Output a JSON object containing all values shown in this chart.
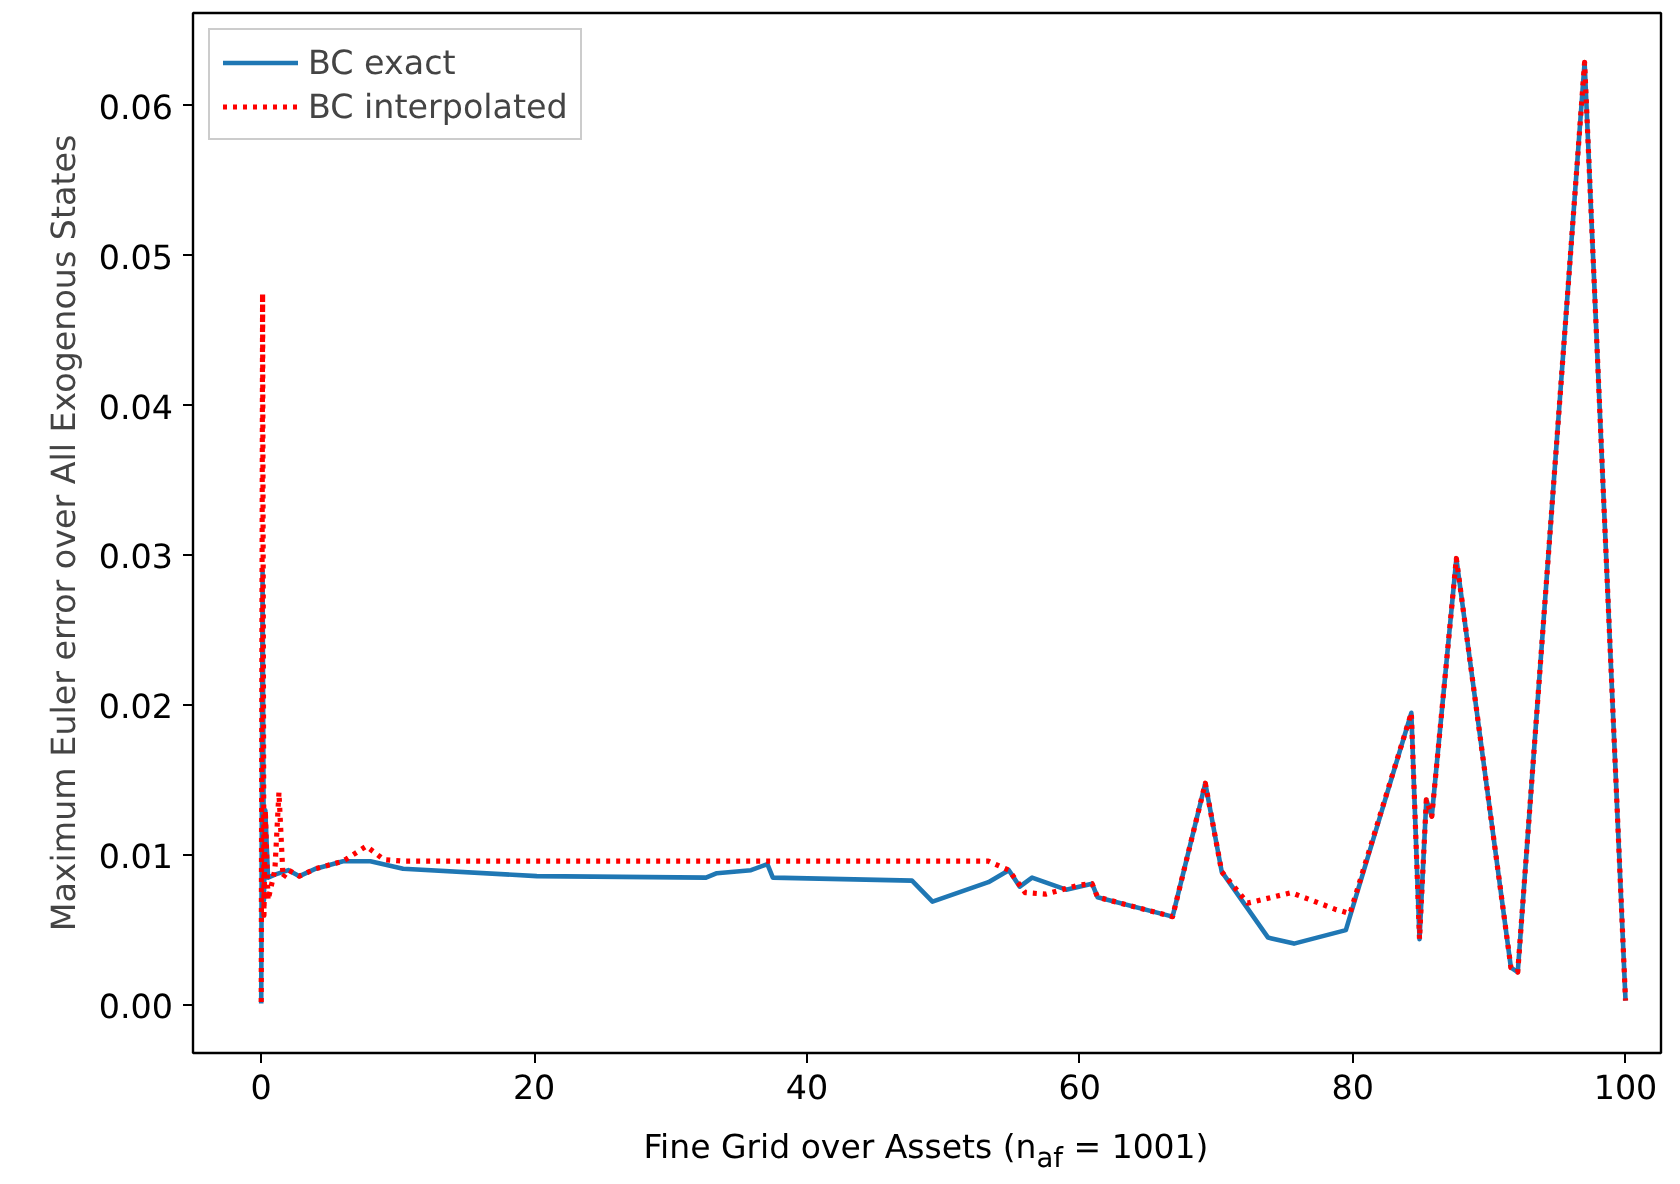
{
  "chart_data": {
    "type": "line",
    "xlabel": "Fine Grid over Assets (n$_{af}$ = 1001)",
    "ylabel": "Maximum Euler error over All Exogenous States",
    "xlim": [
      -5,
      102.6
    ],
    "ylim": [
      -0.0032,
      0.0662
    ],
    "xticks": [
      0,
      20,
      40,
      60,
      80,
      100
    ],
    "yticks": [
      {
        "value": 0,
        "label": "0.00"
      },
      {
        "value": 0.01,
        "label": "0.01"
      },
      {
        "value": 0.02,
        "label": "0.02"
      },
      {
        "value": 0.03,
        "label": "0.03"
      },
      {
        "value": 0.04,
        "label": "0.04"
      },
      {
        "value": 0.05,
        "label": "0.05"
      },
      {
        "value": 0.06,
        "label": "0.06"
      }
    ],
    "grid": false,
    "legend": "top left",
    "marker": "none",
    "series": [
      {
        "name": "BC exact",
        "color": "#1f77b4",
        "line_style": "solid",
        "x": [
          0,
          0.1,
          0.2,
          0.3,
          0.5,
          1,
          2,
          2.8,
          4,
          6,
          8,
          10.4,
          20.2,
          32.6,
          33.4,
          35.9,
          37.1,
          37.5,
          47.7,
          49.2,
          53.3,
          54.8,
          55.6,
          56.5,
          59,
          60.9,
          61.3,
          66.8,
          69.2,
          70.4,
          73.8,
          75.7,
          79.5,
          84.3,
          84.9,
          85.4,
          85.8,
          87.6,
          91.6,
          92.1,
          97.0,
          100
        ],
        "values": [
          0.0001,
          0.029,
          0.007,
          0.013,
          0.0085,
          0.0087,
          0.009,
          0.0086,
          0.0091,
          0.0096,
          0.0096,
          0.0091,
          0.0086,
          0.0085,
          0.0088,
          0.009,
          0.0094,
          0.0085,
          0.0083,
          0.0069,
          0.0082,
          0.009,
          0.0079,
          0.0085,
          0.0077,
          0.0081,
          0.0072,
          0.0059,
          0.0148,
          0.0089,
          0.0045,
          0.0041,
          0.005,
          0.0195,
          0.0044,
          0.0137,
          0.0126,
          0.0298,
          0.0025,
          0.0022,
          0.0629,
          0.0003
        ]
      },
      {
        "name": "BC interpolated",
        "color": "#ff0000",
        "line_style": "dotted",
        "x": [
          0,
          0.1,
          0.2,
          0.3,
          0.5,
          1,
          1.3,
          1.6,
          2,
          2.8,
          4,
          6,
          7.7,
          9,
          10.4,
          53.3,
          54.8,
          56,
          57.5,
          59.9,
          60.9,
          61.3,
          66.8,
          69.2,
          70.4,
          72.3,
          75.5,
          78.7,
          79.8,
          84.3,
          84.9,
          85.4,
          85.8,
          87.6,
          91.6,
          92.1,
          97.0,
          100
        ],
        "values": [
          0.0002,
          0.0475,
          0.006,
          0.013,
          0.007,
          0.009,
          0.0142,
          0.0085,
          0.009,
          0.0086,
          0.0091,
          0.0096,
          0.0106,
          0.0097,
          0.0096,
          0.0096,
          0.009,
          0.0075,
          0.0074,
          0.008,
          0.0081,
          0.0072,
          0.0059,
          0.0148,
          0.0089,
          0.0068,
          0.0075,
          0.0064,
          0.0061,
          0.0195,
          0.0044,
          0.0137,
          0.0126,
          0.0298,
          0.0025,
          0.0022,
          0.0629,
          0.0003
        ]
      }
    ]
  }
}
